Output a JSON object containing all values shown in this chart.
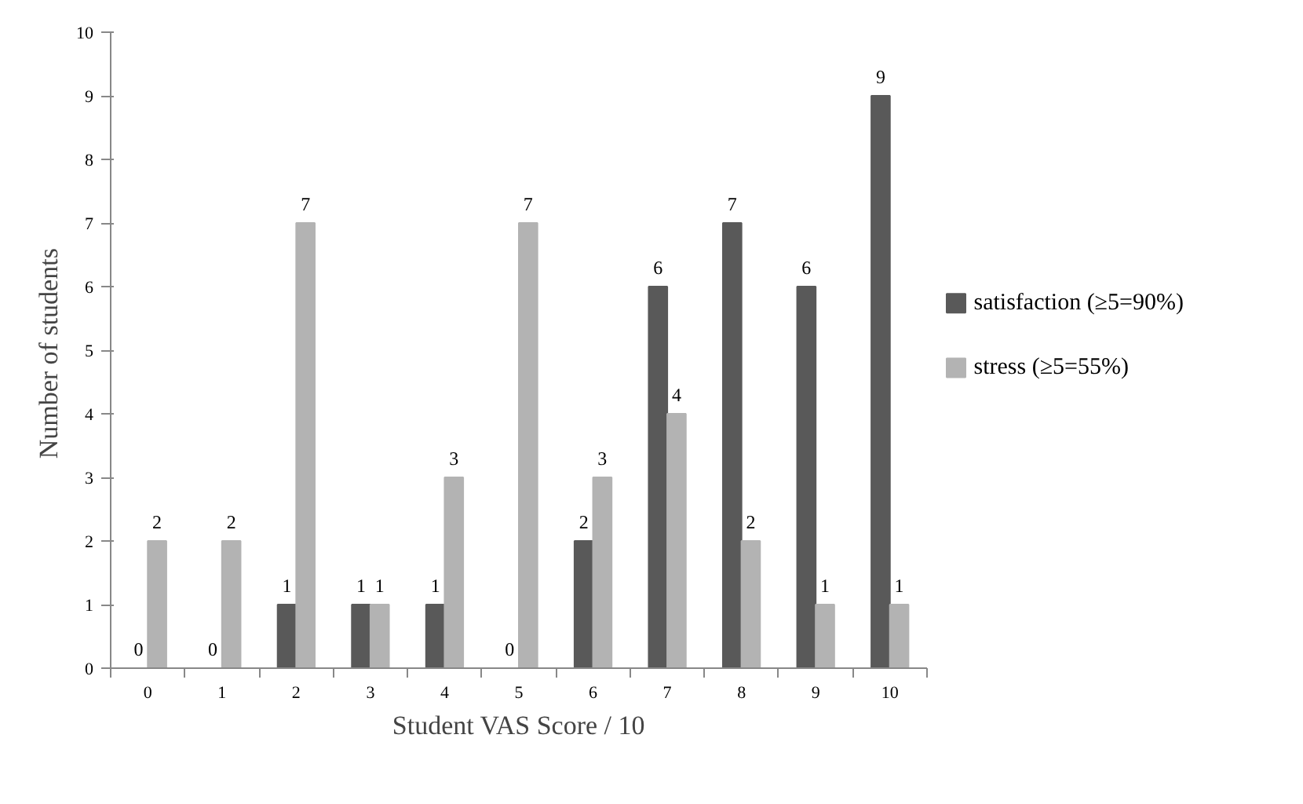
{
  "chart_data": {
    "type": "bar",
    "xlabel": "Student VAS Score / 10",
    "ylabel": "Number of  students",
    "categories": [
      "0",
      "1",
      "2",
      "3",
      "4",
      "5",
      "6",
      "7",
      "8",
      "9",
      "10"
    ],
    "series": [
      {
        "name": "satisfaction (≥5=90%)",
        "color": "#595959",
        "values": [
          0,
          0,
          1,
          1,
          1,
          0,
          2,
          6,
          7,
          6,
          9
        ]
      },
      {
        "name": "stress (≥5=55%)",
        "color": "#b3b3b3",
        "values": [
          2,
          2,
          7,
          1,
          3,
          7,
          3,
          4,
          2,
          1,
          1
        ]
      }
    ],
    "ylim": [
      0,
      10
    ],
    "yticks": [
      0,
      1,
      2,
      3,
      4,
      5,
      6,
      7,
      8,
      9,
      10
    ],
    "grid": false,
    "legend": "right",
    "data_labels": true
  }
}
